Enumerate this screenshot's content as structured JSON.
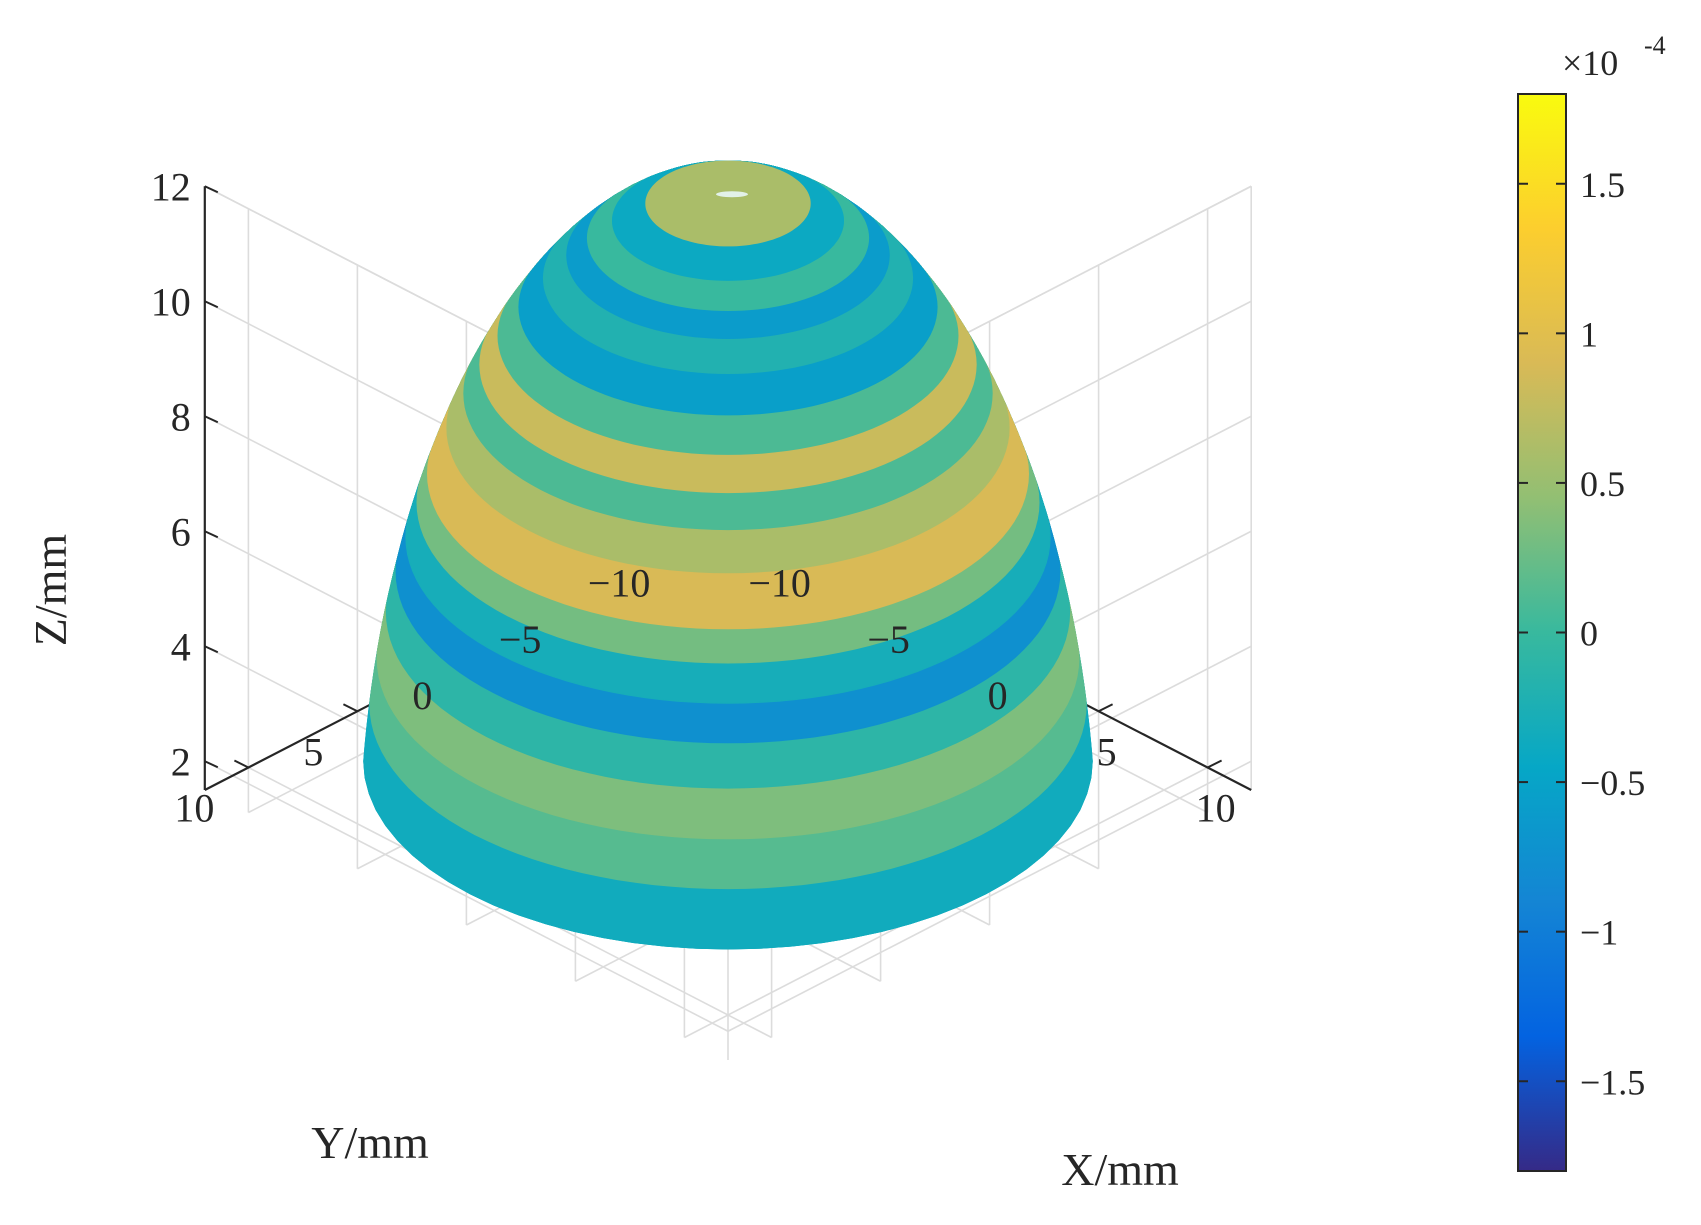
{
  "chart_data": {
    "type": "surface3d",
    "description_shape": "hemispherical dome surface colored by deviation",
    "axes": {
      "x": {
        "label": "X/mm",
        "ticks": [
          -10,
          -5,
          0,
          5,
          10
        ],
        "ticklabels": [
          "−10",
          "−5",
          "0",
          "5",
          "10"
        ],
        "lim": [
          -12,
          12
        ]
      },
      "y": {
        "label": "Y/mm",
        "ticks": [
          -10,
          -5,
          0,
          5,
          10
        ],
        "ticklabels": [
          "−10",
          "−5",
          "0",
          "5",
          "10"
        ],
        "lim": [
          -12,
          12
        ]
      },
      "z": {
        "label": "Z/mm",
        "ticks": [
          2,
          4,
          6,
          8,
          10,
          12
        ],
        "ticklabels": [
          "2",
          "4",
          "6",
          "8",
          "10",
          "12"
        ],
        "lim": [
          1.5,
          12
        ]
      }
    },
    "surface": {
      "radius": 12,
      "z_min": 2,
      "z_max": 12,
      "color_bands": [
        {
          "z_from": 2.0,
          "z_to": 3.0,
          "value": -0.35
        },
        {
          "z_from": 3.0,
          "z_to": 3.8,
          "value": 0.15
        },
        {
          "z_from": 3.8,
          "z_to": 4.6,
          "value": 0.35
        },
        {
          "z_from": 4.6,
          "z_to": 5.3,
          "value": -0.1
        },
        {
          "z_from": 5.3,
          "z_to": 5.9,
          "value": -0.75
        },
        {
          "z_from": 5.9,
          "z_to": 6.5,
          "value": -0.3
        },
        {
          "z_from": 6.5,
          "z_to": 7.0,
          "value": 0.3
        },
        {
          "z_from": 7.0,
          "z_to": 7.8,
          "value": 0.9
        },
        {
          "z_from": 7.8,
          "z_to": 8.4,
          "value": 0.6
        },
        {
          "z_from": 8.4,
          "z_to": 8.9,
          "value": 0.1
        },
        {
          "z_from": 8.9,
          "z_to": 9.4,
          "value": 0.8
        },
        {
          "z_from": 9.4,
          "z_to": 9.9,
          "value": 0.1
        },
        {
          "z_from": 9.9,
          "z_to": 10.4,
          "value": -0.55
        },
        {
          "z_from": 10.4,
          "z_to": 10.8,
          "value": -0.2
        },
        {
          "z_from": 10.8,
          "z_to": 11.1,
          "value": -0.6
        },
        {
          "z_from": 11.1,
          "z_to": 11.4,
          "value": 0.0
        },
        {
          "z_from": 11.4,
          "z_to": 11.7,
          "value": -0.4
        },
        {
          "z_from": 11.7,
          "z_to": 12.0,
          "value": 0.6
        }
      ]
    },
    "colorbar": {
      "multiplier": "×10",
      "exponent": "-4",
      "range": [
        -1.8,
        1.8
      ],
      "ticks": [
        -1.5,
        -1,
        -0.5,
        0,
        0.5,
        1,
        1.5
      ],
      "ticklabels": [
        "−1.5",
        "−1",
        "−0.5",
        "0",
        "0.5",
        "1",
        "1.5"
      ],
      "colormap": "parula",
      "colormap_stops": [
        "#352a87",
        "#0363e1",
        "#1485d4",
        "#06a7c6",
        "#38b99e",
        "#92bf73",
        "#d9ba56",
        "#fcce2e",
        "#f9fb0e"
      ]
    },
    "grid": true
  }
}
